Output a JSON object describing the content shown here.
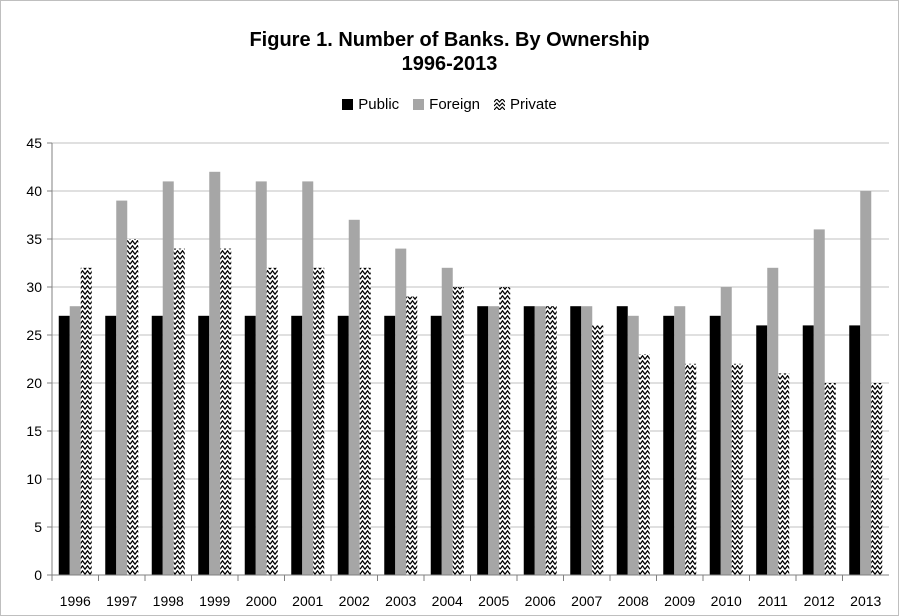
{
  "chart_data": {
    "type": "bar",
    "title": "Figure 1. Number of Banks. By Ownership",
    "subtitle": "1996-2013",
    "xlabel": "",
    "ylabel": "",
    "ylim": [
      0,
      45
    ],
    "yticks": [
      0,
      5,
      10,
      15,
      20,
      25,
      30,
      35,
      40,
      45
    ],
    "grid": true,
    "legend_position": "top",
    "categories": [
      "1996",
      "1997",
      "1998",
      "1999",
      "2000",
      "2001",
      "2002",
      "2003",
      "2004",
      "2005",
      "2006",
      "2007",
      "2008",
      "2009",
      "2010",
      "2011",
      "2012",
      "2013"
    ],
    "series": [
      {
        "name": "Public",
        "color": "#000000",
        "pattern": "solid",
        "values": [
          27,
          27,
          27,
          27,
          27,
          27,
          27,
          27,
          27,
          28,
          28,
          28,
          28,
          27,
          27,
          26,
          26,
          26
        ]
      },
      {
        "name": "Foreign",
        "color": "#a6a6a6",
        "pattern": "solid",
        "values": [
          28,
          39,
          41,
          42,
          41,
          41,
          37,
          34,
          32,
          28,
          28,
          28,
          27,
          28,
          30,
          32,
          36,
          40
        ]
      },
      {
        "name": "Private",
        "color": "#000000",
        "pattern": "zigzag",
        "values": [
          32,
          35,
          34,
          34,
          32,
          32,
          32,
          29,
          30,
          30,
          28,
          26,
          23,
          22,
          22,
          21,
          20,
          20
        ]
      }
    ]
  }
}
